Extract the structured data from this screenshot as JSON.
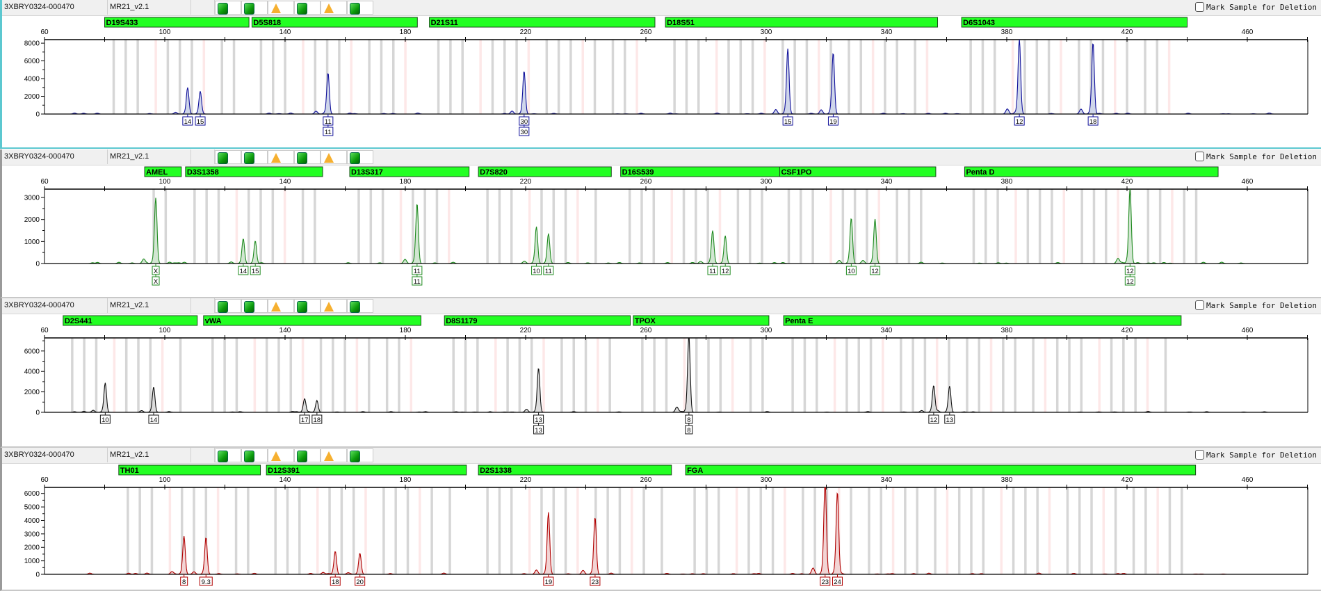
{
  "panels": [
    {
      "sample": "3XBRY0324-000470",
      "panel_name": "MR21_v2.1",
      "status_icons": [
        "green-square",
        "green-square",
        "warning-triangle",
        "green-square",
        "warning-triangle",
        "green-square"
      ],
      "mark_label": "Mark Sample for Deletion",
      "mark_checked": false,
      "selected": true
    },
    {
      "sample": "3XBRY0324-000470",
      "panel_name": "MR21_v2.1",
      "status_icons": [
        "green-square",
        "green-square",
        "warning-triangle",
        "green-square",
        "warning-triangle",
        "green-square"
      ],
      "mark_label": "Mark Sample for Deletion",
      "mark_checked": false,
      "selected": false
    },
    {
      "sample": "3XBRY0324-000470",
      "panel_name": "MR21_v2.1",
      "status_icons": [
        "green-square",
        "green-square",
        "warning-triangle",
        "green-square",
        "warning-triangle",
        "green-square"
      ],
      "mark_label": "Mark Sample for Deletion",
      "mark_checked": false,
      "selected": false
    },
    {
      "sample": "3XBRY0324-000470",
      "panel_name": "MR21_v2.1",
      "status_icons": [
        "green-square",
        "green-square",
        "warning-triangle",
        "green-square",
        "warning-triangle",
        "green-square"
      ],
      "mark_label": "Mark Sample for Deletion",
      "mark_checked": false,
      "selected": false
    }
  ],
  "colors": {
    "marker_bar": "#22ff22",
    "bin_gray": "#d6d6d6",
    "bin_pink": "#fde8e8",
    "status_ok": "#12a012",
    "status_warn": "#f6b030"
  },
  "chart_data": [
    {
      "type": "line",
      "dye_color": "#10109a",
      "fill_color": "#cfd6ea",
      "xlim": [
        60,
        480
      ],
      "ylim": [
        0,
        8400
      ],
      "xticks": [
        60,
        100,
        140,
        180,
        220,
        260,
        300,
        340,
        380,
        420,
        460
      ],
      "yticks": [
        0,
        2000,
        4000,
        6000,
        8000
      ],
      "markers": [
        {
          "name": "D19S433",
          "range": [
            80,
            128
          ]
        },
        {
          "name": "D5S818",
          "range": [
            129,
            184
          ]
        },
        {
          "name": "D21S11",
          "range": [
            188,
            263
          ]
        },
        {
          "name": "D18S51",
          "range": [
            266.5,
            357
          ]
        },
        {
          "name": "D6S1043",
          "range": [
            365,
            440
          ]
        }
      ],
      "peaks": [
        {
          "marker": "D19S433",
          "size": 107.6,
          "height": 2800,
          "labels": [
            "14"
          ]
        },
        {
          "marker": "D19S433",
          "size": 111.8,
          "height": 2500,
          "labels": [
            "15"
          ]
        },
        {
          "marker": "D5S818",
          "size": 154.3,
          "height": 4600,
          "labels": [
            "11",
            "11"
          ]
        },
        {
          "marker": "D21S11",
          "size": 219.5,
          "height": 4800,
          "labels": [
            "30",
            "30"
          ]
        },
        {
          "marker": "D18S51",
          "size": 307.2,
          "height": 7300,
          "labels": [
            "15"
          ]
        },
        {
          "marker": "D18S51",
          "size": 322.3,
          "height": 6800,
          "labels": [
            "19"
          ]
        },
        {
          "marker": "D6S1043",
          "size": 384.2,
          "height": 8300,
          "labels": [
            "12"
          ]
        },
        {
          "marker": "D6S1043",
          "size": 408.7,
          "height": 8000,
          "labels": [
            "18"
          ]
        }
      ]
    },
    {
      "type": "line",
      "dye_color": "#1e8a1e",
      "fill_color": "#d2e6d2",
      "xlim": [
        60,
        480
      ],
      "ylim": [
        0,
        3380
      ],
      "xticks": [
        60,
        100,
        140,
        180,
        220,
        260,
        300,
        340,
        380,
        420,
        460
      ],
      "yticks": [
        0,
        1000,
        2000,
        3000
      ],
      "markers": [
        {
          "name": "AMEL",
          "range": [
            93.3,
            105.5
          ]
        },
        {
          "name": "D3S1358",
          "range": [
            106.9,
            152.5
          ]
        },
        {
          "name": "D13S317",
          "range": [
            161.5,
            201.2
          ]
        },
        {
          "name": "D7S820",
          "range": [
            204.3,
            248.5
          ]
        },
        {
          "name": "D16S539",
          "range": [
            251.6,
            304.5
          ]
        },
        {
          "name": "CSF1PO",
          "range": [
            304.5,
            356.4
          ]
        },
        {
          "name": "Penta D",
          "range": [
            366,
            450.3
          ]
        }
      ],
      "peaks": [
        {
          "marker": "AMEL",
          "size": 97.0,
          "height": 2950,
          "labels": [
            "X",
            "X"
          ]
        },
        {
          "marker": "D3S1358",
          "size": 126.1,
          "height": 1050,
          "labels": [
            "14"
          ]
        },
        {
          "marker": "D3S1358",
          "size": 130.1,
          "height": 1020,
          "labels": [
            "15"
          ]
        },
        {
          "marker": "D13S317",
          "size": 183.9,
          "height": 2700,
          "labels": [
            "11",
            "11"
          ]
        },
        {
          "marker": "D7S820",
          "size": 223.6,
          "height": 1550,
          "labels": [
            "10"
          ]
        },
        {
          "marker": "D7S820",
          "size": 227.6,
          "height": 1300,
          "labels": [
            "11"
          ]
        },
        {
          "marker": "D16S539",
          "size": 282.2,
          "height": 1400,
          "labels": [
            "11"
          ]
        },
        {
          "marker": "D16S539",
          "size": 286.4,
          "height": 1250,
          "labels": [
            "12"
          ]
        },
        {
          "marker": "CSF1PO",
          "size": 328.3,
          "height": 2050,
          "labels": [
            "10"
          ]
        },
        {
          "marker": "CSF1PO",
          "size": 336.2,
          "height": 2000,
          "labels": [
            "12"
          ]
        },
        {
          "marker": "Penta D",
          "size": 421.0,
          "height": 3350,
          "labels": [
            "12",
            "12"
          ]
        }
      ]
    },
    {
      "type": "line",
      "dye_color": "#111111",
      "fill_color": "#dcdcdc",
      "xlim": [
        60,
        480
      ],
      "ylim": [
        0,
        7280
      ],
      "xticks": [
        60,
        100,
        140,
        180,
        220,
        260,
        300,
        340,
        380,
        420,
        460
      ],
      "yticks": [
        0,
        2000,
        4000,
        6000
      ],
      "markers": [
        {
          "name": "D2S441",
          "range": [
            66.2,
            110.8
          ]
        },
        {
          "name": "vWA",
          "range": [
            112.9,
            185.2
          ]
        },
        {
          "name": "D8S1179",
          "range": [
            193,
            254.8
          ]
        },
        {
          "name": "TPOX",
          "range": [
            255.8,
            300.9
          ]
        },
        {
          "name": "Penta E",
          "range": [
            305.8,
            438
          ]
        }
      ],
      "peaks": [
        {
          "marker": "D2S441",
          "size": 80.2,
          "height": 2850,
          "labels": [
            "10"
          ]
        },
        {
          "marker": "D2S441",
          "size": 96.3,
          "height": 2450,
          "labels": [
            "14"
          ]
        },
        {
          "marker": "vWA",
          "size": 146.5,
          "height": 1250,
          "labels": [
            "17"
          ]
        },
        {
          "marker": "vWA",
          "size": 150.6,
          "height": 1150,
          "labels": [
            "18"
          ]
        },
        {
          "marker": "D8S1179",
          "size": 224.3,
          "height": 4300,
          "labels": [
            "13",
            "13"
          ]
        },
        {
          "marker": "TPOX",
          "size": 274.3,
          "height": 7400,
          "labels": [
            "8",
            "8"
          ]
        },
        {
          "marker": "Penta E",
          "size": 355.7,
          "height": 2600,
          "labels": [
            "12"
          ]
        },
        {
          "marker": "Penta E",
          "size": 361.0,
          "height": 2500,
          "labels": [
            "13"
          ]
        }
      ]
    },
    {
      "type": "line",
      "dye_color": "#b00000",
      "fill_color": "#f2d4d4",
      "xlim": [
        60,
        480
      ],
      "ylim": [
        0,
        6450
      ],
      "xticks": [
        60,
        100,
        140,
        180,
        220,
        260,
        300,
        340,
        380,
        420,
        460
      ],
      "yticks": [
        0,
        1000,
        2000,
        3000,
        4000,
        5000,
        6000
      ],
      "markers": [
        {
          "name": "TH01",
          "range": [
            84.7,
            131.8
          ]
        },
        {
          "name": "D12S391",
          "range": [
            133.8,
            200.3
          ]
        },
        {
          "name": "D2S1338",
          "range": [
            204.3,
            268.5
          ]
        },
        {
          "name": "FGA",
          "range": [
            273.2,
            442.8
          ]
        }
      ],
      "peaks": [
        {
          "marker": "TH01",
          "size": 106.4,
          "height": 2800,
          "labels": [
            "8"
          ]
        },
        {
          "marker": "TH01",
          "size": 113.7,
          "height": 2650,
          "labels": [
            "9.3"
          ]
        },
        {
          "marker": "D12S391",
          "size": 156.7,
          "height": 1650,
          "labels": [
            "18"
          ]
        },
        {
          "marker": "D12S391",
          "size": 164.9,
          "height": 1550,
          "labels": [
            "20"
          ]
        },
        {
          "marker": "D2S1338",
          "size": 227.6,
          "height": 4550,
          "labels": [
            "19"
          ]
        },
        {
          "marker": "D2S1338",
          "size": 243.1,
          "height": 4200,
          "labels": [
            "23"
          ]
        },
        {
          "marker": "FGA",
          "size": 319.6,
          "height": 6400,
          "labels": [
            "23"
          ]
        },
        {
          "marker": "FGA",
          "size": 323.7,
          "height": 6000,
          "labels": [
            "24"
          ]
        }
      ]
    }
  ]
}
